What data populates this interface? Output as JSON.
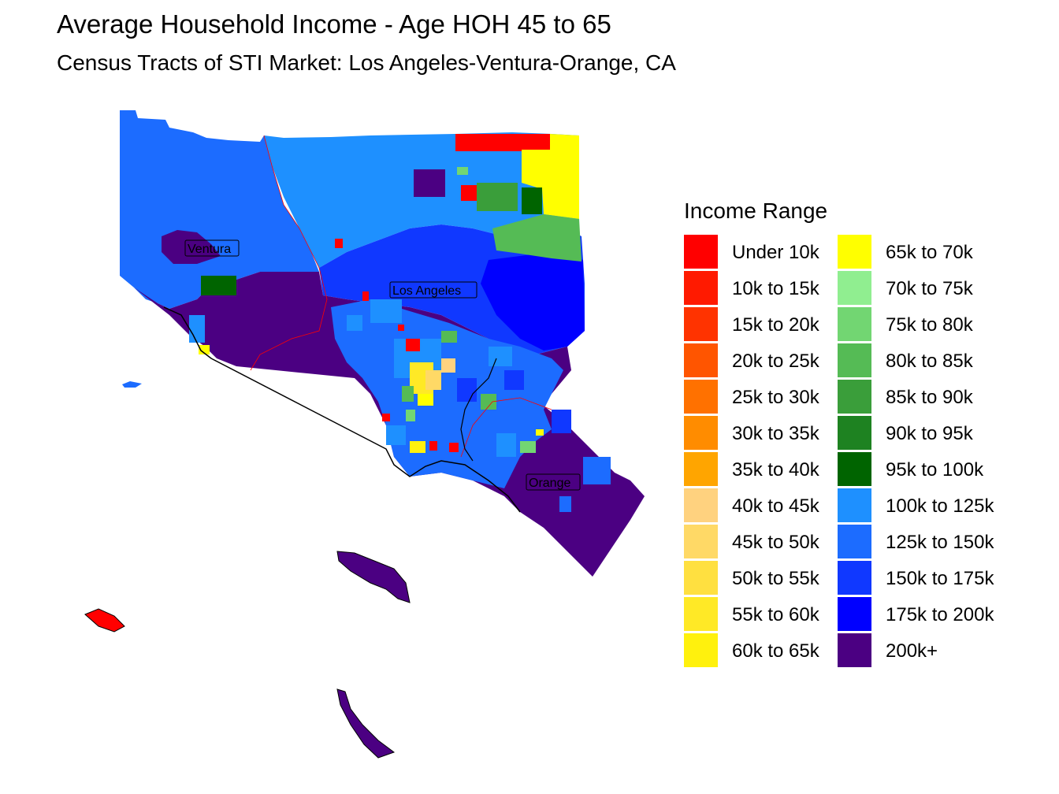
{
  "header": {
    "title": "Average Household Income - Age HOH 45 to 65",
    "subtitle": "Census Tracts of STI Market: Los Angeles-Ventura-Orange, CA"
  },
  "legend": {
    "title": "Income Range",
    "items": [
      {
        "label": "Under 10k",
        "color": "#FF0000"
      },
      {
        "label": "10k to 15k",
        "color": "#FF1A00"
      },
      {
        "label": "15k to 20k",
        "color": "#FF3300"
      },
      {
        "label": "20k to 25k",
        "color": "#FF5500"
      },
      {
        "label": "25k to 30k",
        "color": "#FF7100"
      },
      {
        "label": "30k to 35k",
        "color": "#FF8C00"
      },
      {
        "label": "35k to 40k",
        "color": "#FFA500"
      },
      {
        "label": "40k to 45k",
        "color": "#FFD27F"
      },
      {
        "label": "45k to 50k",
        "color": "#FFD966"
      },
      {
        "label": "50k to 55k",
        "color": "#FFE040"
      },
      {
        "label": "55k to 60k",
        "color": "#FFE926"
      },
      {
        "label": "60k to 65k",
        "color": "#FFF10D"
      },
      {
        "label": "65k to 70k",
        "color": "#FFFF00"
      },
      {
        "label": "70k to 75k",
        "color": "#90EE90"
      },
      {
        "label": "75k to 80k",
        "color": "#72D672"
      },
      {
        "label": "80k to 85k",
        "color": "#55BB55"
      },
      {
        "label": "85k to 90k",
        "color": "#3A9E3A"
      },
      {
        "label": "90k to 95k",
        "color": "#1E8221"
      },
      {
        "label": "95k to 100k",
        "color": "#006400"
      },
      {
        "label": "100k to 125k",
        "color": "#1E90FF"
      },
      {
        "label": "125k to 150k",
        "color": "#1C6CFF"
      },
      {
        "label": "150k to 175k",
        "color": "#1038FF"
      },
      {
        "label": "175k to 200k",
        "color": "#0000FF"
      },
      {
        "label": "200k+",
        "color": "#4B0082"
      }
    ]
  },
  "map": {
    "labels": [
      {
        "text": "Ventura"
      },
      {
        "text": "Los Angeles"
      },
      {
        "text": "Orange"
      }
    ]
  }
}
